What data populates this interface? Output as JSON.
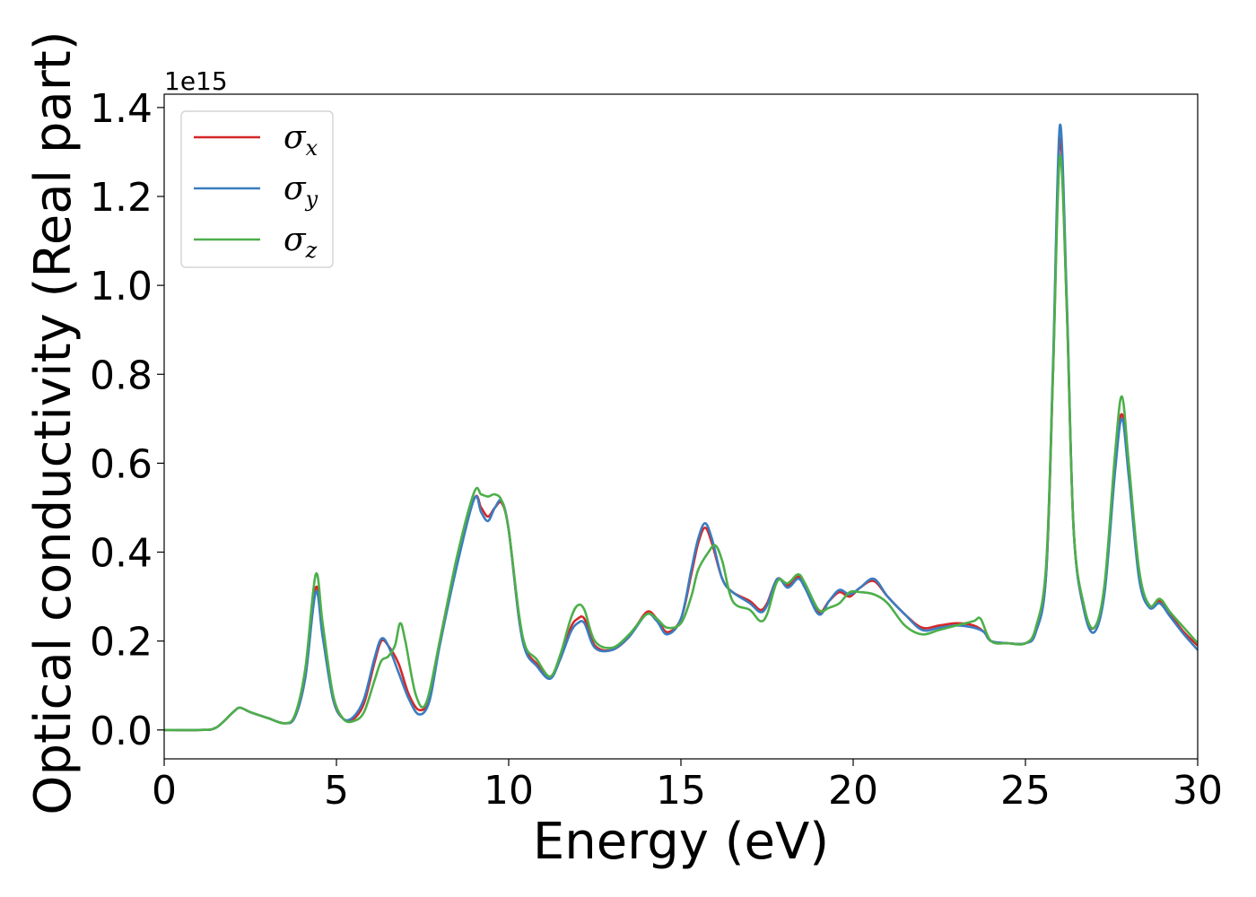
{
  "chart_data": {
    "type": "line",
    "xlabel": "Energy (eV)",
    "ylabel": "Optical conductivity (Real part)",
    "y_offset_label": "1e15",
    "xlim": [
      0,
      30
    ],
    "ylim": [
      -0.065,
      1.43
    ],
    "x_ticks": [
      0,
      5,
      10,
      15,
      20,
      25,
      30
    ],
    "x_tick_labels": [
      "0",
      "5",
      "10",
      "15",
      "20",
      "25",
      "30"
    ],
    "y_ticks": [
      0.0,
      0.2,
      0.4,
      0.6,
      0.8,
      1.0,
      1.2,
      1.4
    ],
    "y_tick_labels": [
      "0.0",
      "0.2",
      "0.4",
      "0.6",
      "0.8",
      "1.0",
      "1.2",
      "1.4"
    ],
    "grid": false,
    "legend_position": "top-left",
    "series": [
      {
        "name": "σ",
        "subscript": "x",
        "color": "#d62728",
        "points": [
          [
            0,
            0
          ],
          [
            1,
            0
          ],
          [
            1.5,
            0.005
          ],
          [
            2,
            0.04
          ],
          [
            2.2,
            0.05
          ],
          [
            2.5,
            0.04
          ],
          [
            3,
            0.027
          ],
          [
            3.5,
            0.015
          ],
          [
            3.8,
            0.03
          ],
          [
            4.1,
            0.12
          ],
          [
            4.4,
            0.32
          ],
          [
            4.6,
            0.22
          ],
          [
            4.9,
            0.07
          ],
          [
            5.2,
            0.025
          ],
          [
            5.5,
            0.025
          ],
          [
            5.8,
            0.06
          ],
          [
            6.1,
            0.15
          ],
          [
            6.3,
            0.2
          ],
          [
            6.5,
            0.19
          ],
          [
            6.8,
            0.15
          ],
          [
            7.1,
            0.08
          ],
          [
            7.4,
            0.045
          ],
          [
            7.7,
            0.07
          ],
          [
            8.0,
            0.2
          ],
          [
            8.5,
            0.38
          ],
          [
            9.0,
            0.52
          ],
          [
            9.2,
            0.5
          ],
          [
            9.4,
            0.48
          ],
          [
            9.6,
            0.5
          ],
          [
            9.8,
            0.51
          ],
          [
            10.0,
            0.45
          ],
          [
            10.3,
            0.25
          ],
          [
            10.5,
            0.18
          ],
          [
            10.8,
            0.15
          ],
          [
            11.2,
            0.12
          ],
          [
            11.5,
            0.16
          ],
          [
            11.8,
            0.23
          ],
          [
            12.0,
            0.25
          ],
          [
            12.2,
            0.25
          ],
          [
            12.5,
            0.19
          ],
          [
            13.0,
            0.18
          ],
          [
            13.5,
            0.21
          ],
          [
            14.0,
            0.265
          ],
          [
            14.3,
            0.25
          ],
          [
            14.6,
            0.22
          ],
          [
            15.0,
            0.25
          ],
          [
            15.3,
            0.35
          ],
          [
            15.5,
            0.42
          ],
          [
            15.7,
            0.455
          ],
          [
            15.9,
            0.42
          ],
          [
            16.2,
            0.34
          ],
          [
            16.5,
            0.31
          ],
          [
            17.0,
            0.29
          ],
          [
            17.3,
            0.27
          ],
          [
            17.5,
            0.285
          ],
          [
            17.8,
            0.34
          ],
          [
            18.1,
            0.325
          ],
          [
            18.4,
            0.345
          ],
          [
            18.6,
            0.32
          ],
          [
            19.0,
            0.265
          ],
          [
            19.3,
            0.29
          ],
          [
            19.6,
            0.31
          ],
          [
            19.9,
            0.3
          ],
          [
            20.2,
            0.32
          ],
          [
            20.6,
            0.335
          ],
          [
            21.0,
            0.3
          ],
          [
            21.5,
            0.26
          ],
          [
            22.0,
            0.23
          ],
          [
            22.5,
            0.235
          ],
          [
            23.0,
            0.24
          ],
          [
            23.5,
            0.235
          ],
          [
            23.8,
            0.22
          ],
          [
            24.0,
            0.2
          ],
          [
            24.5,
            0.195
          ],
          [
            25.0,
            0.195
          ],
          [
            25.3,
            0.22
          ],
          [
            25.6,
            0.35
          ],
          [
            25.8,
            0.8
          ],
          [
            26.0,
            1.33
          ],
          [
            26.2,
            0.95
          ],
          [
            26.4,
            0.45
          ],
          [
            26.7,
            0.27
          ],
          [
            27.0,
            0.23
          ],
          [
            27.3,
            0.32
          ],
          [
            27.6,
            0.6
          ],
          [
            27.8,
            0.71
          ],
          [
            28.0,
            0.58
          ],
          [
            28.3,
            0.35
          ],
          [
            28.6,
            0.28
          ],
          [
            28.9,
            0.29
          ],
          [
            29.2,
            0.26
          ],
          [
            29.6,
            0.22
          ],
          [
            30.0,
            0.19
          ]
        ]
      },
      {
        "name": "σ",
        "subscript": "y",
        "color": "#3a7dc0",
        "points": [
          [
            0,
            0
          ],
          [
            1,
            0
          ],
          [
            1.5,
            0.005
          ],
          [
            2,
            0.04
          ],
          [
            2.2,
            0.05
          ],
          [
            2.5,
            0.04
          ],
          [
            3,
            0.027
          ],
          [
            3.5,
            0.015
          ],
          [
            3.8,
            0.03
          ],
          [
            4.1,
            0.12
          ],
          [
            4.4,
            0.31
          ],
          [
            4.6,
            0.21
          ],
          [
            4.9,
            0.07
          ],
          [
            5.2,
            0.025
          ],
          [
            5.5,
            0.03
          ],
          [
            5.8,
            0.07
          ],
          [
            6.1,
            0.16
          ],
          [
            6.3,
            0.205
          ],
          [
            6.5,
            0.19
          ],
          [
            6.8,
            0.13
          ],
          [
            7.1,
            0.07
          ],
          [
            7.4,
            0.035
          ],
          [
            7.7,
            0.065
          ],
          [
            8.0,
            0.19
          ],
          [
            8.5,
            0.37
          ],
          [
            9.0,
            0.52
          ],
          [
            9.2,
            0.49
          ],
          [
            9.4,
            0.47
          ],
          [
            9.6,
            0.5
          ],
          [
            9.8,
            0.515
          ],
          [
            10.0,
            0.45
          ],
          [
            10.3,
            0.25
          ],
          [
            10.5,
            0.175
          ],
          [
            10.8,
            0.145
          ],
          [
            11.2,
            0.115
          ],
          [
            11.5,
            0.16
          ],
          [
            11.8,
            0.22
          ],
          [
            12.0,
            0.24
          ],
          [
            12.2,
            0.24
          ],
          [
            12.5,
            0.185
          ],
          [
            13.0,
            0.18
          ],
          [
            13.5,
            0.21
          ],
          [
            14.0,
            0.26
          ],
          [
            14.3,
            0.245
          ],
          [
            14.6,
            0.215
          ],
          [
            15.0,
            0.25
          ],
          [
            15.3,
            0.36
          ],
          [
            15.5,
            0.43
          ],
          [
            15.7,
            0.465
          ],
          [
            15.9,
            0.43
          ],
          [
            16.2,
            0.34
          ],
          [
            16.5,
            0.31
          ],
          [
            17.0,
            0.285
          ],
          [
            17.3,
            0.265
          ],
          [
            17.5,
            0.28
          ],
          [
            17.8,
            0.34
          ],
          [
            18.1,
            0.32
          ],
          [
            18.4,
            0.34
          ],
          [
            18.6,
            0.32
          ],
          [
            19.0,
            0.26
          ],
          [
            19.3,
            0.29
          ],
          [
            19.6,
            0.315
          ],
          [
            19.9,
            0.305
          ],
          [
            20.2,
            0.32
          ],
          [
            20.6,
            0.34
          ],
          [
            21.0,
            0.3
          ],
          [
            21.5,
            0.26
          ],
          [
            22.0,
            0.225
          ],
          [
            22.5,
            0.23
          ],
          [
            23.0,
            0.235
          ],
          [
            23.5,
            0.23
          ],
          [
            23.8,
            0.22
          ],
          [
            24.0,
            0.2
          ],
          [
            24.5,
            0.195
          ],
          [
            25.0,
            0.195
          ],
          [
            25.3,
            0.22
          ],
          [
            25.6,
            0.35
          ],
          [
            25.8,
            0.82
          ],
          [
            26.0,
            1.36
          ],
          [
            26.2,
            0.97
          ],
          [
            26.4,
            0.45
          ],
          [
            26.7,
            0.27
          ],
          [
            27.0,
            0.22
          ],
          [
            27.3,
            0.31
          ],
          [
            27.6,
            0.58
          ],
          [
            27.8,
            0.7
          ],
          [
            28.0,
            0.57
          ],
          [
            28.3,
            0.34
          ],
          [
            28.6,
            0.275
          ],
          [
            28.9,
            0.285
          ],
          [
            29.2,
            0.255
          ],
          [
            29.6,
            0.215
          ],
          [
            30.0,
            0.18
          ]
        ]
      },
      {
        "name": "σ",
        "subscript": "z",
        "color": "#4daf4a",
        "points": [
          [
            0,
            0
          ],
          [
            1,
            0
          ],
          [
            1.5,
            0.005
          ],
          [
            2,
            0.04
          ],
          [
            2.2,
            0.05
          ],
          [
            2.5,
            0.04
          ],
          [
            3,
            0.027
          ],
          [
            3.5,
            0.015
          ],
          [
            3.8,
            0.035
          ],
          [
            4.1,
            0.14
          ],
          [
            4.4,
            0.35
          ],
          [
            4.6,
            0.24
          ],
          [
            4.9,
            0.08
          ],
          [
            5.2,
            0.025
          ],
          [
            5.5,
            0.02
          ],
          [
            5.8,
            0.04
          ],
          [
            6.1,
            0.11
          ],
          [
            6.3,
            0.155
          ],
          [
            6.5,
            0.165
          ],
          [
            6.7,
            0.19
          ],
          [
            6.85,
            0.24
          ],
          [
            7.0,
            0.2
          ],
          [
            7.3,
            0.08
          ],
          [
            7.6,
            0.06
          ],
          [
            8.0,
            0.2
          ],
          [
            8.5,
            0.39
          ],
          [
            9.0,
            0.535
          ],
          [
            9.2,
            0.53
          ],
          [
            9.4,
            0.525
          ],
          [
            9.6,
            0.53
          ],
          [
            9.8,
            0.515
          ],
          [
            10.0,
            0.45
          ],
          [
            10.3,
            0.26
          ],
          [
            10.5,
            0.185
          ],
          [
            10.8,
            0.16
          ],
          [
            11.2,
            0.12
          ],
          [
            11.5,
            0.17
          ],
          [
            11.8,
            0.25
          ],
          [
            12.0,
            0.28
          ],
          [
            12.2,
            0.27
          ],
          [
            12.5,
            0.2
          ],
          [
            13.0,
            0.185
          ],
          [
            13.5,
            0.215
          ],
          [
            14.0,
            0.26
          ],
          [
            14.3,
            0.25
          ],
          [
            14.6,
            0.23
          ],
          [
            15.0,
            0.24
          ],
          [
            15.3,
            0.3
          ],
          [
            15.5,
            0.36
          ],
          [
            15.8,
            0.4
          ],
          [
            16.0,
            0.415
          ],
          [
            16.2,
            0.38
          ],
          [
            16.5,
            0.29
          ],
          [
            17.0,
            0.27
          ],
          [
            17.3,
            0.245
          ],
          [
            17.5,
            0.26
          ],
          [
            17.8,
            0.335
          ],
          [
            18.1,
            0.33
          ],
          [
            18.4,
            0.35
          ],
          [
            18.6,
            0.33
          ],
          [
            19.0,
            0.27
          ],
          [
            19.3,
            0.275
          ],
          [
            19.6,
            0.285
          ],
          [
            19.9,
            0.31
          ],
          [
            20.2,
            0.31
          ],
          [
            20.6,
            0.305
          ],
          [
            21.0,
            0.285
          ],
          [
            21.5,
            0.235
          ],
          [
            22.0,
            0.215
          ],
          [
            22.5,
            0.225
          ],
          [
            23.0,
            0.235
          ],
          [
            23.5,
            0.245
          ],
          [
            23.7,
            0.25
          ],
          [
            24.0,
            0.2
          ],
          [
            24.5,
            0.195
          ],
          [
            25.0,
            0.195
          ],
          [
            25.3,
            0.23
          ],
          [
            25.6,
            0.37
          ],
          [
            25.8,
            0.8
          ],
          [
            26.0,
            1.29
          ],
          [
            26.2,
            0.95
          ],
          [
            26.4,
            0.45
          ],
          [
            26.7,
            0.28
          ],
          [
            27.0,
            0.23
          ],
          [
            27.3,
            0.33
          ],
          [
            27.6,
            0.62
          ],
          [
            27.8,
            0.75
          ],
          [
            28.0,
            0.6
          ],
          [
            28.3,
            0.36
          ],
          [
            28.6,
            0.28
          ],
          [
            28.9,
            0.295
          ],
          [
            29.2,
            0.265
          ],
          [
            29.6,
            0.23
          ],
          [
            30.0,
            0.195
          ]
        ]
      }
    ]
  }
}
